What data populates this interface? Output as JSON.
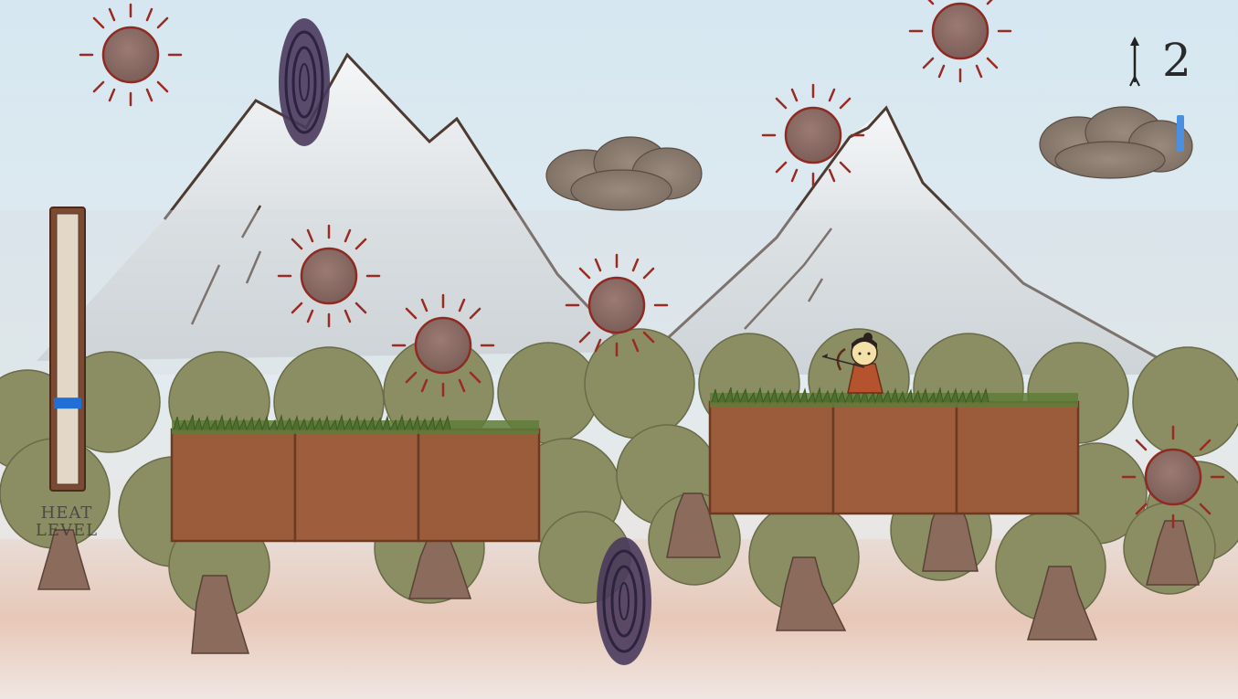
{
  "hud": {
    "arrow_count": "2",
    "arrow_icon": "arrow-icon",
    "heat_label_line1": "HEAT",
    "heat_label_line2": "LEVEL",
    "heat_level": 0.3,
    "heat_marker_color": "#1f6fd6"
  },
  "colors": {
    "sky": "#dbe8ef",
    "sun": "#8a6a63",
    "sun_ray": "#9a2b22",
    "portal": "#4a3a5c",
    "cloud": "#85756a",
    "dirt": "#9a5a3a",
    "grass": "#5f7d3a",
    "tree": "#8a8b5f",
    "trunk": "#8b6a5a"
  }
}
